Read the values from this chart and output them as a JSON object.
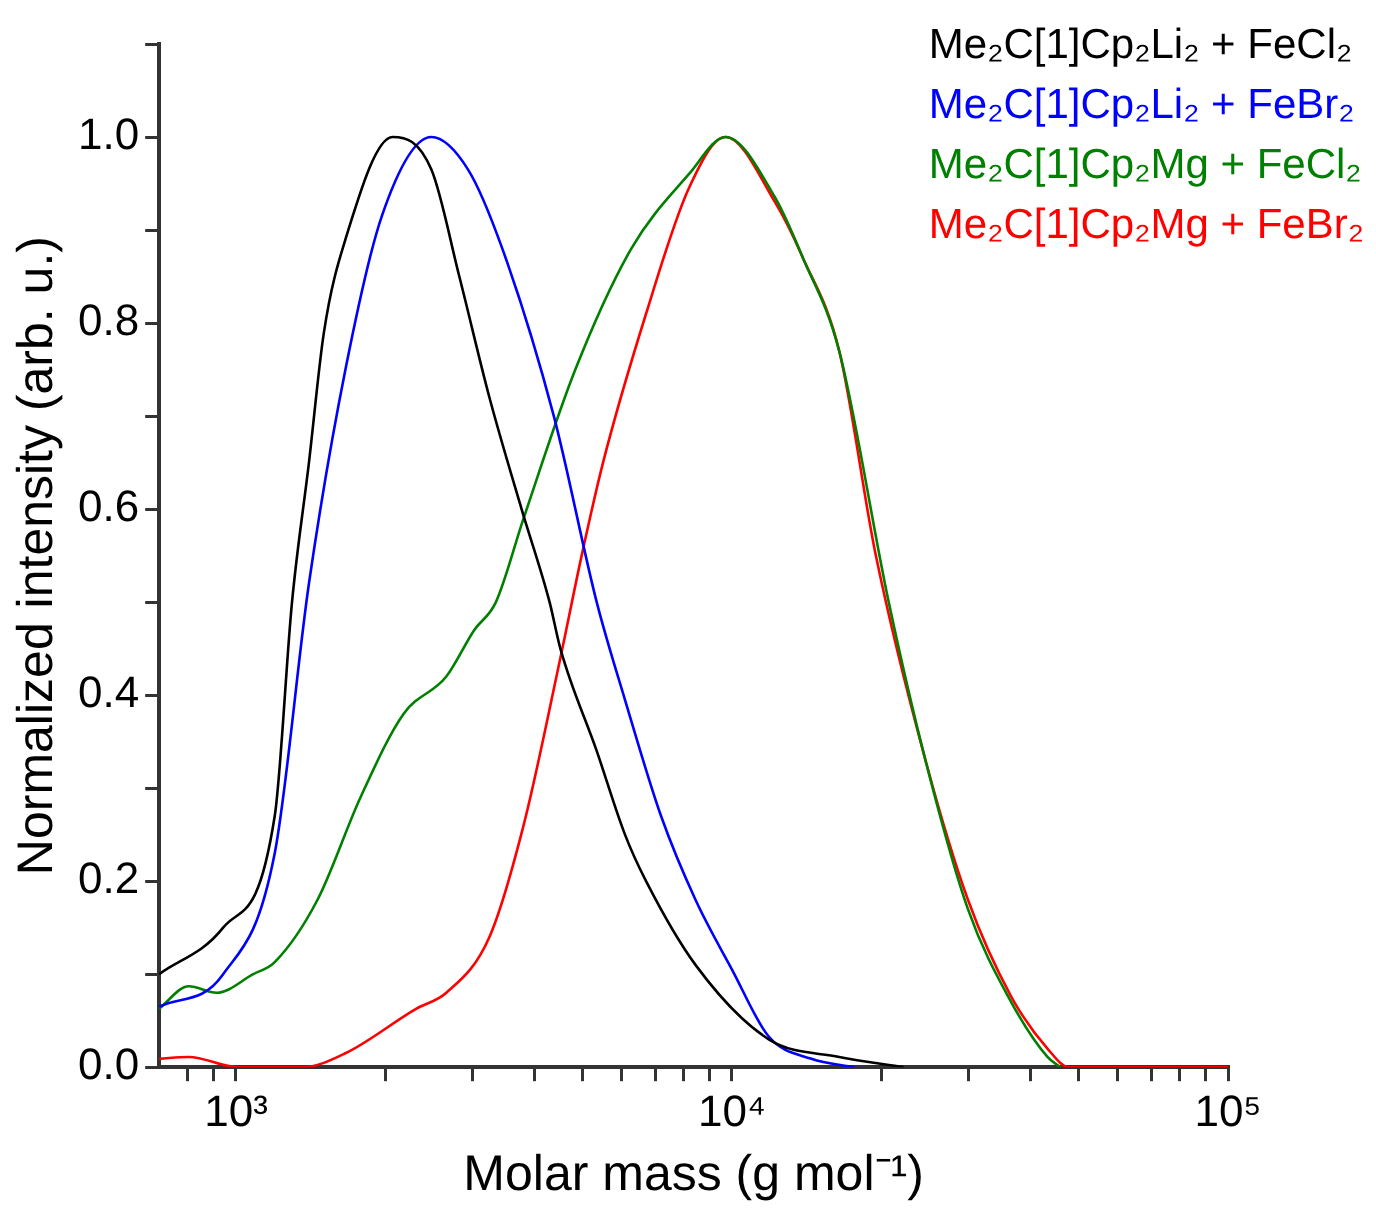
{
  "chart_data": {
    "type": "line",
    "xlabel": "Molar mass (g mol⁻¹)",
    "ylabel": "Normalized intensity (arb. u.)",
    "log": "x",
    "xlim": [
      700,
      100000
    ],
    "xticks": [
      {
        "value": 800,
        "label": null
      },
      {
        "value": 900,
        "label": null
      },
      {
        "value": 1000,
        "label": "10³"
      },
      {
        "value": 2000,
        "label": null
      },
      {
        "value": 3000,
        "label": null
      },
      {
        "value": 4000,
        "label": null
      },
      {
        "value": 5000,
        "label": null
      },
      {
        "value": 6000,
        "label": null
      },
      {
        "value": 7000,
        "label": null
      },
      {
        "value": 8000,
        "label": null
      },
      {
        "value": 9000,
        "label": null
      },
      {
        "value": 10000,
        "label": "10⁴"
      },
      {
        "value": 20000,
        "label": null
      },
      {
        "value": 30000,
        "label": null
      },
      {
        "value": 40000,
        "label": null
      },
      {
        "value": 50000,
        "label": null
      },
      {
        "value": 60000,
        "label": null
      },
      {
        "value": 70000,
        "label": null
      },
      {
        "value": 80000,
        "label": null
      },
      {
        "value": 90000,
        "label": null
      },
      {
        "value": 100000,
        "label": "10⁵"
      }
    ],
    "ylim": [
      0,
      1.1
    ],
    "yticks": [
      "0.0",
      {
        "value": 0.1,
        "label": null
      },
      {
        "value": 0.2,
        "label": "0.2"
      },
      {
        "value": 0.3,
        "label": null
      },
      {
        "value": 0.4,
        "label": "0.4"
      },
      {
        "value": 0.5,
        "label": null
      },
      {
        "value": 0.6,
        "label": "0.6"
      },
      {
        "value": 0.7,
        "label": null
      },
      {
        "value": 0.8,
        "label": "0.8"
      },
      {
        "value": 0.9,
        "label": null
      },
      {
        "value": 1.0,
        "label": "1.0"
      },
      {
        "value": 1.1,
        "label": null
      }
    ],
    "legend": "top right",
    "marker": "none",
    "line_style": "solid",
    "series": [
      {
        "name": "Me₂C[1]Cp₂Li₂ + FeCl₂",
        "color": "#000000",
        "x": [
          700,
          942,
          1197,
          1297,
          1403,
          1504,
          1662,
          2069,
          2477,
          2820,
          3243,
          3765,
          4288,
          4508,
          5336,
          6085,
          6710,
          8441,
          11860,
          16450,
          22180
        ],
        "values": [
          0.1,
          0.15,
          0.27,
          0.5,
          0.65,
          0.79,
          0.89,
          1.0,
          0.965,
          0.85,
          0.72,
          0.6,
          0.5,
          0.45,
          0.34,
          0.25,
          0.2,
          0.11,
          0.03,
          0.011,
          0
        ]
      },
      {
        "name": "Me₂C[1]Cp₂Li₂ + FeBr₂",
        "color": "#0000ff",
        "x": [
          700,
          942,
          1197,
          1403,
          1662,
          1968,
          2477,
          2937,
          3443,
          4373,
          5336,
          6085,
          7194,
          8441,
          10000,
          11860,
          14460,
          17660
        ],
        "values": [
          0.065,
          0.1,
          0.23,
          0.52,
          0.75,
          0.915,
          1.0,
          0.965,
          0.88,
          0.7,
          0.5,
          0.395,
          0.27,
          0.18,
          0.105,
          0.033,
          0.009,
          0
        ]
      },
      {
        "name": "Me₂C[1]Cp₂Mg + FeCl₂",
        "color": "#008000",
        "x": [
          700,
          803,
          914,
          1083,
          1197,
          1460,
          1782,
          2178,
          2655,
          3023,
          3342,
          3800,
          4832,
          6266,
          8185,
          9705,
          12210,
          13900,
          16450,
          20700,
          24550,
          29900,
          36550,
          43250,
          45900
        ],
        "values": [
          0.063,
          0.087,
          0.08,
          0.1,
          0.113,
          0.18,
          0.29,
          0.38,
          0.42,
          0.47,
          0.5,
          0.59,
          0.75,
          0.88,
          0.96,
          1.0,
          0.935,
          0.87,
          0.77,
          0.5,
          0.33,
          0.17,
          0.07,
          0.011,
          0
        ]
      },
      {
        "name": "Me₂C[1]Cp₂Mg + FeBr₂",
        "color": "#ff0000",
        "x": [
          700,
          803,
          1010,
          1362,
          1662,
          2311,
          2655,
          3243,
          3800,
          4508,
          4976,
          5495,
          6710,
          8185,
          9705,
          12210,
          13900,
          16450,
          19500,
          24550,
          29900,
          36550,
          43250,
          47840,
          100000
        ],
        "values": [
          0.009,
          0.011,
          0,
          0,
          0.015,
          0.063,
          0.08,
          0.14,
          0.26,
          0.44,
          0.55,
          0.65,
          0.81,
          0.945,
          1.0,
          0.93,
          0.87,
          0.77,
          0.55,
          0.33,
          0.18,
          0.076,
          0.02,
          0,
          0
        ]
      }
    ]
  }
}
